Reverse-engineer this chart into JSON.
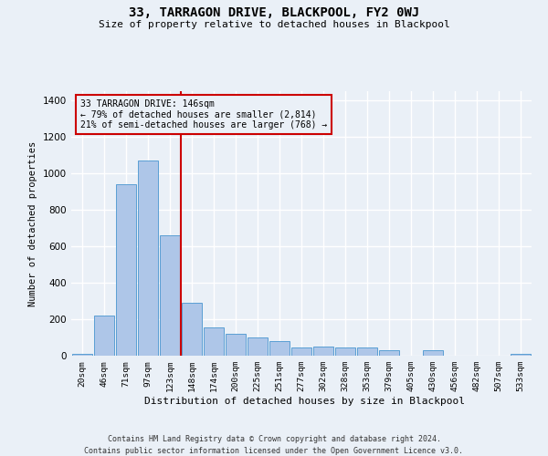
{
  "title": "33, TARRAGON DRIVE, BLACKPOOL, FY2 0WJ",
  "subtitle": "Size of property relative to detached houses in Blackpool",
  "xlabel": "Distribution of detached houses by size in Blackpool",
  "ylabel": "Number of detached properties",
  "bar_color": "#aec6e8",
  "bar_edge_color": "#5a9fd4",
  "categories": [
    "20sqm",
    "46sqm",
    "71sqm",
    "97sqm",
    "123sqm",
    "148sqm",
    "174sqm",
    "200sqm",
    "225sqm",
    "251sqm",
    "277sqm",
    "302sqm",
    "328sqm",
    "353sqm",
    "379sqm",
    "405sqm",
    "430sqm",
    "456sqm",
    "482sqm",
    "507sqm",
    "533sqm"
  ],
  "values": [
    10,
    220,
    940,
    1070,
    660,
    290,
    155,
    120,
    100,
    80,
    45,
    50,
    45,
    45,
    30,
    0,
    30,
    0,
    0,
    0,
    10
  ],
  "vline_color": "#cc0000",
  "annotation_text": "33 TARRAGON DRIVE: 146sqm\n← 79% of detached houses are smaller (2,814)\n21% of semi-detached houses are larger (768) →",
  "ylim": [
    0,
    1450
  ],
  "yticks": [
    0,
    200,
    400,
    600,
    800,
    1000,
    1200,
    1400
  ],
  "footer_line1": "Contains HM Land Registry data © Crown copyright and database right 2024.",
  "footer_line2": "Contains public sector information licensed under the Open Government Licence v3.0.",
  "background_color": "#eaf0f7",
  "grid_color": "#ffffff"
}
